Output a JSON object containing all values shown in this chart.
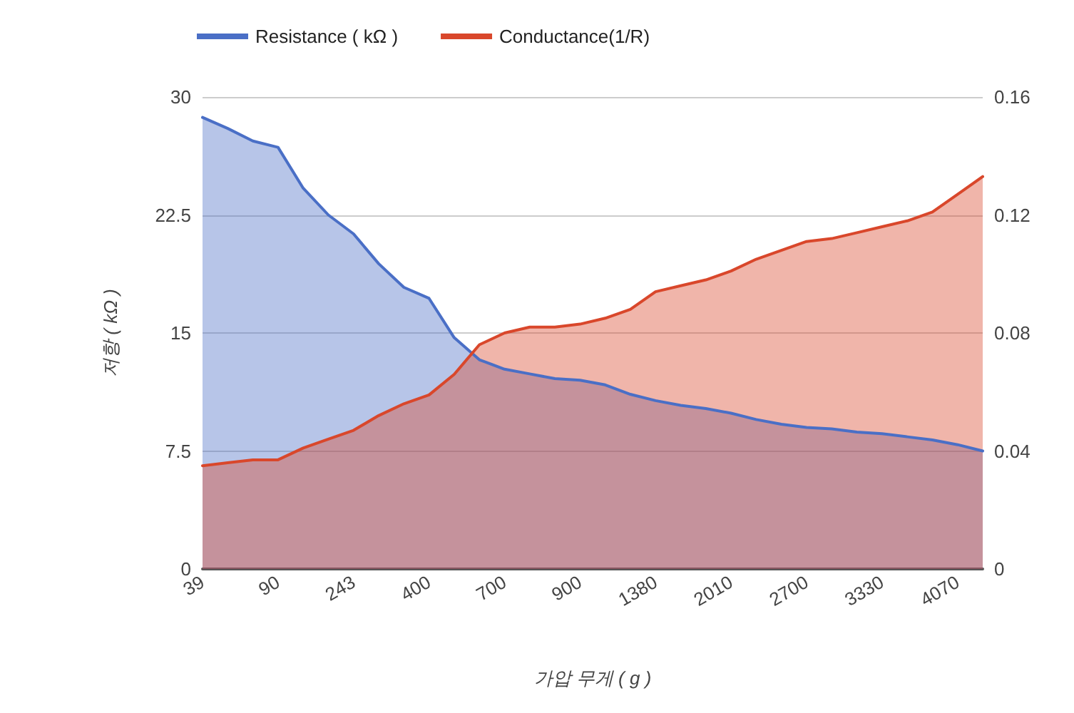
{
  "chart_data": {
    "type": "area",
    "xlabel": "가압 무게 ( g )",
    "ylabel": "저항 ( kΩ )",
    "categories": [
      "39",
      null,
      null,
      "90",
      null,
      null,
      "243",
      null,
      null,
      "400",
      null,
      null,
      "700",
      null,
      null,
      "900",
      null,
      null,
      "1380",
      null,
      null,
      "2010",
      null,
      null,
      "2700",
      null,
      null,
      "3330",
      null,
      null,
      "4070",
      null
    ],
    "series": [
      {
        "name": "Resistance ( kΩ )",
        "color": "#4a6fc6",
        "values": [
          28.7,
          28.0,
          27.2,
          26.8,
          24.2,
          22.5,
          21.3,
          19.4,
          17.9,
          17.2,
          14.7,
          13.3,
          12.7,
          12.4,
          12.1,
          12.0,
          11.7,
          11.1,
          10.7,
          10.4,
          10.2,
          9.9,
          9.5,
          9.2,
          9.0,
          8.9,
          8.7,
          8.6,
          8.4,
          8.2,
          7.9,
          7.5
        ]
      },
      {
        "name": "Conductance(1/R)",
        "color": "#d9472b",
        "axis": "y2",
        "values": [
          0.035,
          0.036,
          0.037,
          0.037,
          0.041,
          0.044,
          0.047,
          0.052,
          0.056,
          0.059,
          0.066,
          0.076,
          0.08,
          0.082,
          0.082,
          0.083,
          0.085,
          0.088,
          0.094,
          0.096,
          0.098,
          0.101,
          0.105,
          0.108,
          0.111,
          0.112,
          0.114,
          0.116,
          0.118,
          0.121,
          0.127,
          0.133
        ]
      }
    ],
    "ylim": [
      0,
      30
    ],
    "yticks": [
      0,
      7.5,
      15,
      22.5,
      30
    ],
    "y2lim": [
      0,
      0.16
    ],
    "y2ticks": [
      0,
      0.04,
      0.08,
      0.12,
      0.16
    ],
    "grid": "y",
    "legend": "top left",
    "marker": "none",
    "line_style": "solid"
  }
}
